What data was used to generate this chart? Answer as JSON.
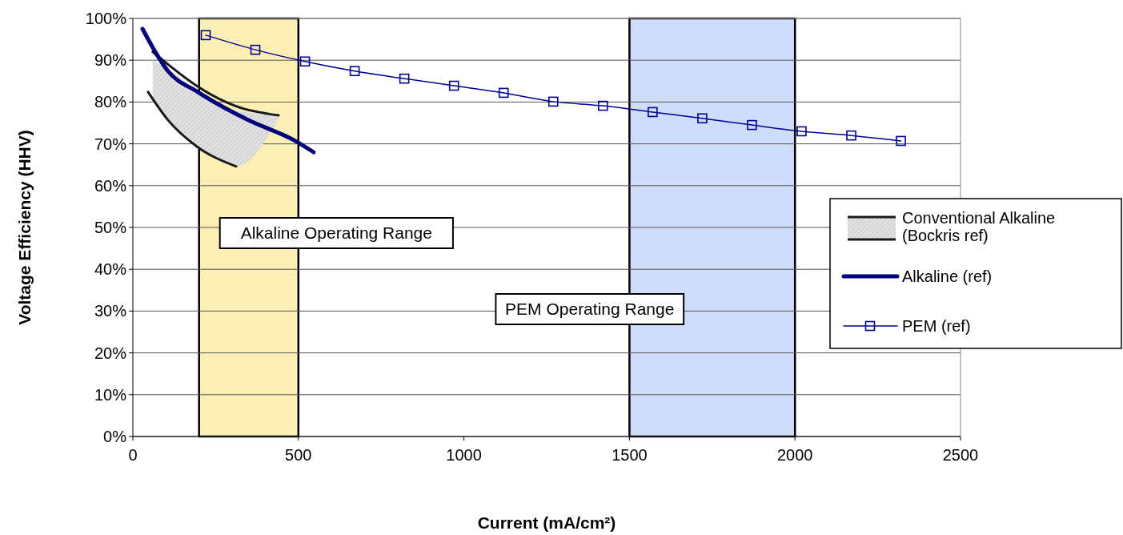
{
  "chart_data": {
    "type": "line",
    "xlabel": "Current (mA/cm²)",
    "ylabel": "Voltage Efficiency (HHV)",
    "xlim": [
      0,
      2500
    ],
    "xticks": [
      0,
      500,
      1000,
      1500,
      2000,
      2500
    ],
    "ylim": [
      0,
      100
    ],
    "yticks": [
      {
        "value": 0,
        "label": "0%"
      },
      {
        "value": 10,
        "label": "10%"
      },
      {
        "value": 20,
        "label": "20%"
      },
      {
        "value": 30,
        "label": "30%"
      },
      {
        "value": 40,
        "label": "40%"
      },
      {
        "value": 50,
        "label": "50%"
      },
      {
        "value": 60,
        "label": "60%"
      },
      {
        "value": 70,
        "label": "70%"
      },
      {
        "value": 80,
        "label": "80%"
      },
      {
        "value": 90,
        "label": "90%"
      },
      {
        "value": 100,
        "label": "100%"
      }
    ],
    "grid": "y",
    "legend": "right",
    "bands": [
      {
        "axis": "x",
        "from": 200,
        "to": 500,
        "label": "Alkaline Operating Range",
        "color": "#fbefb5"
      },
      {
        "axis": "x",
        "from": 1500,
        "to": 2000,
        "label": "PEM Operating Range",
        "color": "#cfdcfa"
      }
    ],
    "series": [
      {
        "name": "Conventional Alkaline (Bockris ref)",
        "color": "#1a1a1a",
        "marker": "none",
        "x": [
          60,
          106,
          196,
          312,
          440
        ],
        "values": [
          92,
          89,
          83.7,
          79,
          76.8
        ],
        "lower": [
          81,
          75.5,
          69.5,
          64.6,
          76
        ],
        "upper": [
          90,
          88,
          82.5,
          78,
          76.8
        ]
      },
      {
        "color": "#1a1a1a",
        "marker": "none",
        "x": [
          46,
          106,
          191,
          312
        ],
        "values": [
          82.4,
          75.7,
          69.5,
          64.6
        ]
      },
      {
        "name": "Alkaline (ref)",
        "color": "#00007a",
        "marker": "none",
        "x": [
          29,
          106,
          196,
          348,
          486,
          546
        ],
        "values": [
          97.5,
          87.4,
          82.4,
          75.7,
          70.9,
          68
        ]
      },
      {
        "name": "PEM (ref)",
        "color": "#000090",
        "marker": "square",
        "x": [
          220,
          370,
          520,
          670,
          820,
          970,
          1120,
          1270,
          1420,
          1570,
          1720,
          1870,
          2020,
          2170,
          2320
        ],
        "values": [
          96,
          92.5,
          89.7,
          87.4,
          85.6,
          83.9,
          82.2,
          80.1,
          79.1,
          77.6,
          76.1,
          74.5,
          73,
          72,
          70.7
        ]
      }
    ]
  }
}
